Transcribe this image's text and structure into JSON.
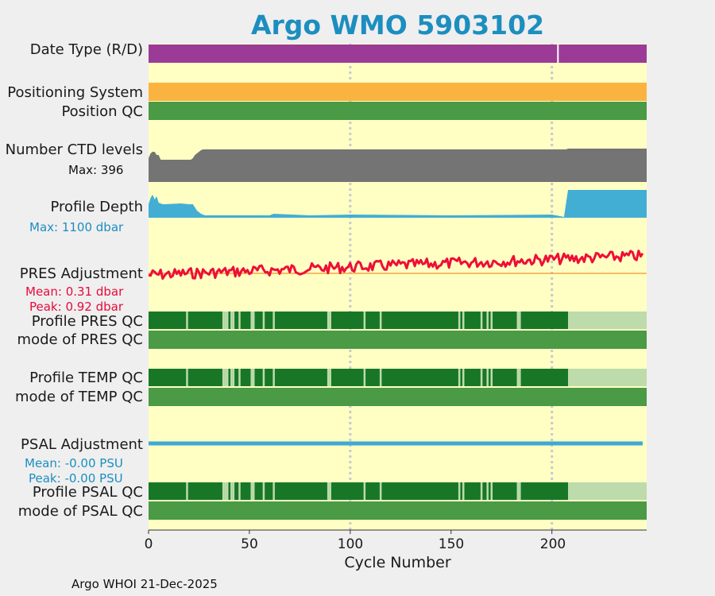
{
  "title": "Argo WMO 5903102",
  "footer": "Argo WHOI 21-Dec-2025",
  "colors": {
    "panel_bg": "#ffffc4",
    "date_type": "#9b3b97",
    "positioning": "#fbb33f",
    "qc_mode_green": "#4a9a46",
    "qc_dark_green": "#177727",
    "qc_light_green": "#bddbab",
    "ctd_gray": "#747474",
    "depth_blue": "#43aed4",
    "pres_red": "#ee0f36",
    "pres_mean_line": "#f6a541",
    "psal_blue": "#3da9d4",
    "grid_dotted": "#c8c8d2"
  },
  "labels": {
    "date_type": "Date Type (R/D)",
    "positioning_system": "Positioning System",
    "position_qc": "Position QC",
    "ctd_levels": "Number CTD levels",
    "ctd_max": "Max: 396",
    "profile_depth": "Profile Depth",
    "depth_max": "Max: 1100 dbar",
    "pres_adjustment": "PRES Adjustment",
    "pres_mean": "Mean: 0.31 dbar",
    "pres_peak": "Peak: 0.92 dbar",
    "profile_pres_qc": "Profile PRES QC",
    "mode_pres_qc": "mode of PRES QC",
    "profile_temp_qc": "Profile TEMP QC",
    "mode_temp_qc": "mode of TEMP QC",
    "psal_adjustment": "PSAL Adjustment",
    "psal_mean": "Mean: -0.00 PSU",
    "psal_peak": "Peak: -0.00 PSU",
    "profile_psal_qc": "Profile PSAL QC",
    "mode_psal_qc": "mode of PSAL QC"
  },
  "chart_data": {
    "type": "area",
    "title": "Argo WMO 5903102",
    "xlabel": "Cycle Number",
    "xlim": [
      0,
      247
    ],
    "xticks": [
      "0",
      "50",
      "100",
      "150",
      "200"
    ],
    "xtick_values": [
      0,
      50,
      100,
      150,
      200
    ],
    "grid_lines_x": [
      100,
      200
    ],
    "date_type_gap_cycles": [
      203
    ],
    "ctd_levels_max": 396,
    "profile_depth_max_dbar": 1100,
    "pres_adjustment_mean_dbar": 0.31,
    "pres_adjustment_peak_dbar": 0.92,
    "psal_adjustment_mean_psu": -0.0,
    "psal_adjustment_peak_psu": -0.0,
    "profile_qc_good_until_cycle": 208,
    "profile_qc_gap_cycles": [
      19,
      37,
      38,
      39,
      41,
      42,
      45,
      51,
      52,
      57,
      62,
      89,
      90,
      107,
      115,
      154,
      156,
      165,
      168,
      170,
      183,
      184
    ]
  }
}
